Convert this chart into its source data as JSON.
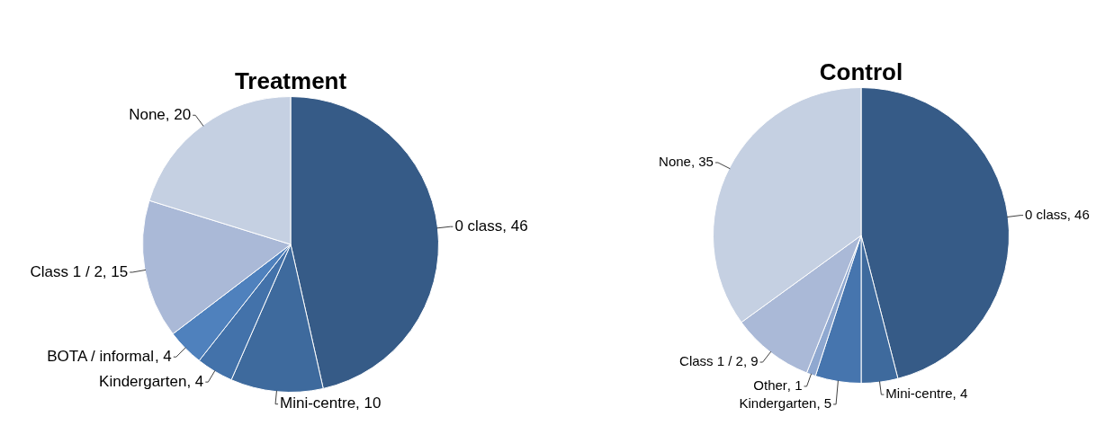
{
  "chart_data": [
    {
      "type": "pie",
      "title": "Treatment",
      "categories": [
        "0 class",
        "Mini-centre",
        "Kindergarten",
        "BOTA / informal",
        "Class 1 / 2",
        "None"
      ],
      "values": [
        46,
        10,
        4,
        4,
        15,
        20
      ],
      "colors": [
        "#365b87",
        "#3e6a9d",
        "#4372aa",
        "#4f81bd",
        "#aab9d7",
        "#c5d0e2"
      ],
      "value_labels": [
        ", 46",
        ", 10",
        ", 4",
        ", 4",
        ", 15",
        ", 20"
      ]
    },
    {
      "type": "pie",
      "title": "Control",
      "categories": [
        "0 class",
        "Mini-centre",
        "Kindergarten",
        "Other",
        "Class 1 / 2",
        "None"
      ],
      "values": [
        46,
        4,
        5,
        1,
        9,
        35
      ],
      "colors": [
        "#365b87",
        "#3e6a9d",
        "#4675ae",
        "#8fa8d0",
        "#aab9d7",
        "#c5d0e2"
      ],
      "value_labels": [
        ", 46",
        ", 4",
        ", 5",
        ", 1",
        ", 9",
        ", 35"
      ]
    }
  ]
}
